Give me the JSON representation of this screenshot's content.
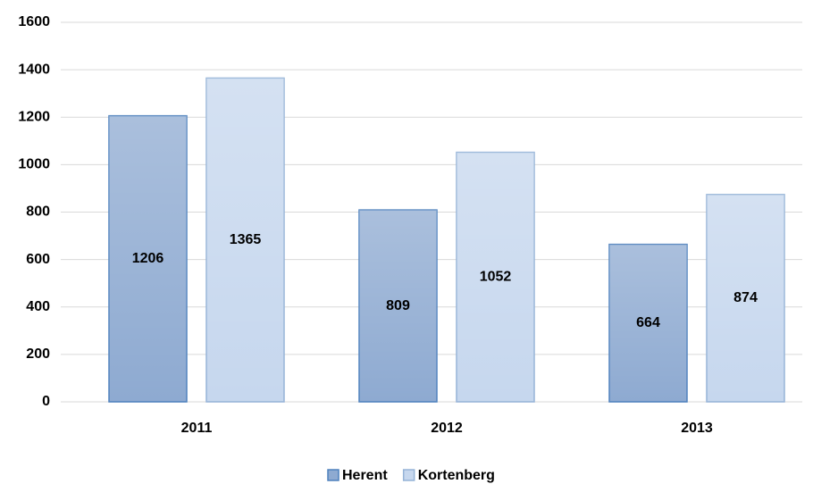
{
  "chart_data": {
    "type": "bar",
    "categories": [
      "2011",
      "2012",
      "2013"
    ],
    "series": [
      {
        "name": "Herent",
        "color": "#8eaad1",
        "values": [
          1206,
          809,
          664
        ]
      },
      {
        "name": "Kortenberg",
        "color": "#c6d7ee",
        "values": [
          1365,
          1052,
          874
        ]
      }
    ],
    "ylim": [
      0,
      1600
    ],
    "yticks": [
      0,
      200,
      400,
      600,
      800,
      1000,
      1200,
      1400,
      1600
    ],
    "grid": true,
    "legend": "bottom"
  }
}
